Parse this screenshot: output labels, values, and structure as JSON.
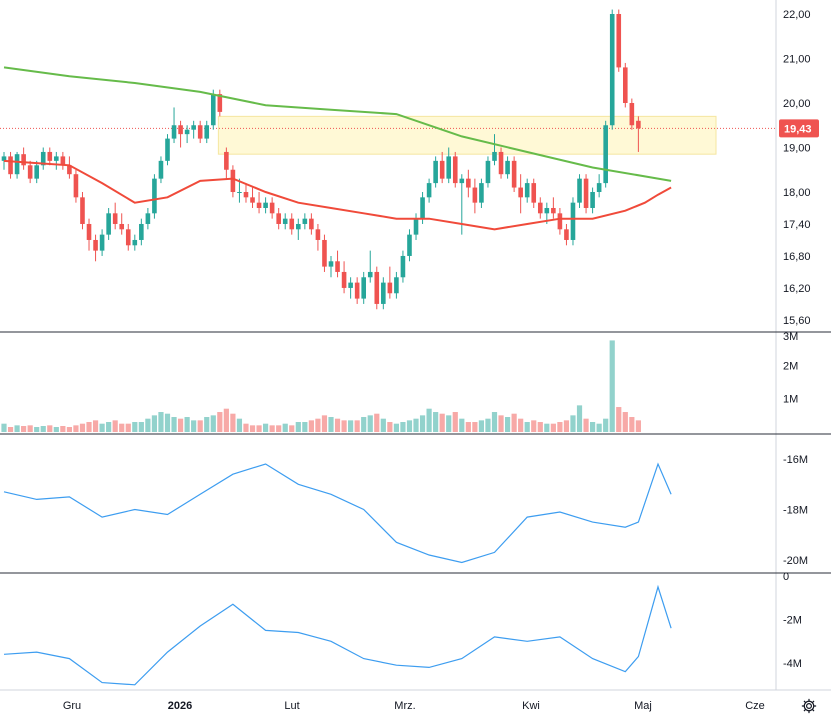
{
  "colors": {
    "up": "#26a69a",
    "down": "#ef5350",
    "up_volume": "#92d2cc",
    "down_volume": "#f7a9a7",
    "ma_long": "#66bb4a",
    "ma_short": "#f04a3a",
    "indicator_line": "#3d9df0",
    "zone_fill": "#fff9d6",
    "zone_stroke": "#f5e6a0",
    "last_price_bg": "#ef5350",
    "last_price_line": "#ef5350"
  },
  "chart_data": [
    {
      "type": "candlestick",
      "pane": "price",
      "x_ticks": [
        "Gru",
        "2026",
        "Lut",
        "Mrz.",
        "Kwi",
        "Maj",
        "Cze"
      ],
      "y_ticks": [
        "22,00",
        "21,00",
        "20,00",
        "19,00",
        "18,00",
        "17,40",
        "16,80",
        "16,20",
        "15,60"
      ],
      "y_tick_values": [
        22.0,
        21.0,
        20.0,
        19.0,
        18.0,
        17.4,
        16.8,
        16.2,
        15.6
      ],
      "last_price_label": "19,43",
      "last_price": 19.43,
      "zone": {
        "low": 18.85,
        "high": 19.7
      },
      "ohlc": [
        [
          18.7,
          18.9,
          18.5,
          18.8
        ],
        [
          18.8,
          18.9,
          18.3,
          18.4
        ],
        [
          18.4,
          18.9,
          18.3,
          18.85
        ],
        [
          18.85,
          19.0,
          18.5,
          18.6
        ],
        [
          18.6,
          18.7,
          18.2,
          18.3
        ],
        [
          18.3,
          18.7,
          18.2,
          18.6
        ],
        [
          18.6,
          19.0,
          18.5,
          18.9
        ],
        [
          18.9,
          19.0,
          18.6,
          18.7
        ],
        [
          18.7,
          18.9,
          18.5,
          18.8
        ],
        [
          18.8,
          18.9,
          18.5,
          18.6
        ],
        [
          18.6,
          18.8,
          18.3,
          18.4
        ],
        [
          18.4,
          18.5,
          17.8,
          17.9
        ],
        [
          17.9,
          18.0,
          17.3,
          17.4
        ],
        [
          17.4,
          17.5,
          16.9,
          17.1
        ],
        [
          17.1,
          17.2,
          16.7,
          16.9
        ],
        [
          16.9,
          17.3,
          16.8,
          17.2
        ],
        [
          17.2,
          17.7,
          17.1,
          17.6
        ],
        [
          17.6,
          17.8,
          17.3,
          17.4
        ],
        [
          17.4,
          17.6,
          17.2,
          17.3
        ],
        [
          17.3,
          17.4,
          16.9,
          17.0
        ],
        [
          17.0,
          17.2,
          16.9,
          17.1
        ],
        [
          17.1,
          17.5,
          17.0,
          17.4
        ],
        [
          17.4,
          17.7,
          17.3,
          17.6
        ],
        [
          17.6,
          18.4,
          17.5,
          18.3
        ],
        [
          18.3,
          18.8,
          18.2,
          18.7
        ],
        [
          18.7,
          19.3,
          18.6,
          19.2
        ],
        [
          19.2,
          19.9,
          19.1,
          19.5
        ],
        [
          19.5,
          19.6,
          19.0,
          19.3
        ],
        [
          19.3,
          19.5,
          19.1,
          19.4
        ],
        [
          19.4,
          19.6,
          19.2,
          19.5
        ],
        [
          19.5,
          19.6,
          19.1,
          19.2
        ],
        [
          19.2,
          19.6,
          19.1,
          19.5
        ],
        [
          19.5,
          20.3,
          19.4,
          20.2
        ],
        [
          20.2,
          20.3,
          19.7,
          19.8
        ],
        [
          18.9,
          19.0,
          18.3,
          18.5
        ],
        [
          18.5,
          18.6,
          17.9,
          18.0
        ],
        [
          18.0,
          18.3,
          17.8,
          18.0
        ],
        [
          18.0,
          18.2,
          17.8,
          17.9
        ],
        [
          17.9,
          18.1,
          17.7,
          17.8
        ],
        [
          17.8,
          18.0,
          17.6,
          17.7
        ],
        [
          17.7,
          17.9,
          17.6,
          17.8
        ],
        [
          17.8,
          17.9,
          17.5,
          17.6
        ],
        [
          17.6,
          17.7,
          17.3,
          17.4
        ],
        [
          17.4,
          17.6,
          17.3,
          17.5
        ],
        [
          17.5,
          17.6,
          17.2,
          17.3
        ],
        [
          17.3,
          17.5,
          17.1,
          17.4
        ],
        [
          17.4,
          17.6,
          17.3,
          17.5
        ],
        [
          17.5,
          17.6,
          17.2,
          17.3
        ],
        [
          17.3,
          17.4,
          16.9,
          17.1
        ],
        [
          17.1,
          17.2,
          16.5,
          16.6
        ],
        [
          16.6,
          16.8,
          16.4,
          16.7
        ],
        [
          16.7,
          16.9,
          16.4,
          16.5
        ],
        [
          16.5,
          16.7,
          16.1,
          16.2
        ],
        [
          16.2,
          16.4,
          16.0,
          16.3
        ],
        [
          16.3,
          16.4,
          15.9,
          16.0
        ],
        [
          16.0,
          16.5,
          15.9,
          16.4
        ],
        [
          16.4,
          16.9,
          16.3,
          16.5
        ],
        [
          16.5,
          16.6,
          15.8,
          15.9
        ],
        [
          15.9,
          16.4,
          15.8,
          16.3
        ],
        [
          16.3,
          16.6,
          16.0,
          16.1
        ],
        [
          16.1,
          16.5,
          16.0,
          16.4
        ],
        [
          16.4,
          16.9,
          16.3,
          16.8
        ],
        [
          16.8,
          17.3,
          16.7,
          17.2
        ],
        [
          17.2,
          17.6,
          17.1,
          17.5
        ],
        [
          17.5,
          18.0,
          17.4,
          17.9
        ],
        [
          17.9,
          18.3,
          17.8,
          18.2
        ],
        [
          18.2,
          18.8,
          18.1,
          18.7
        ],
        [
          18.7,
          18.9,
          18.2,
          18.3
        ],
        [
          18.3,
          19.0,
          18.2,
          18.8
        ],
        [
          18.8,
          18.9,
          18.1,
          18.2
        ],
        [
          18.2,
          18.4,
          17.2,
          18.3
        ],
        [
          18.3,
          18.5,
          17.9,
          18.1
        ],
        [
          18.1,
          18.3,
          17.6,
          17.8
        ],
        [
          17.8,
          18.3,
          17.7,
          18.2
        ],
        [
          18.2,
          18.8,
          18.1,
          18.7
        ],
        [
          18.7,
          19.3,
          18.6,
          18.9
        ],
        [
          18.9,
          19.0,
          18.3,
          18.4
        ],
        [
          18.4,
          18.8,
          18.3,
          18.7
        ],
        [
          18.7,
          18.8,
          18.0,
          18.1
        ],
        [
          18.1,
          18.4,
          17.6,
          17.9
        ],
        [
          17.9,
          18.3,
          17.8,
          18.2
        ],
        [
          18.2,
          18.3,
          17.7,
          17.8
        ],
        [
          17.8,
          17.9,
          17.5,
          17.6
        ],
        [
          17.6,
          17.8,
          17.4,
          17.7
        ],
        [
          17.7,
          17.9,
          17.5,
          17.6
        ],
        [
          17.6,
          17.7,
          17.2,
          17.3
        ],
        [
          17.3,
          17.4,
          17.0,
          17.1
        ],
        [
          17.1,
          17.9,
          17.0,
          17.8
        ],
        [
          17.8,
          18.4,
          17.7,
          18.3
        ],
        [
          18.3,
          18.4,
          17.6,
          17.7
        ],
        [
          17.7,
          18.1,
          17.6,
          18.0
        ],
        [
          18.0,
          18.4,
          17.9,
          18.2
        ],
        [
          18.2,
          19.6,
          18.1,
          19.5
        ],
        [
          19.5,
          22.1,
          19.4,
          22.0
        ],
        [
          22.0,
          22.1,
          20.7,
          20.8
        ],
        [
          20.8,
          20.9,
          19.9,
          20.0
        ],
        [
          20.0,
          20.1,
          19.4,
          19.5
        ],
        [
          19.6,
          19.7,
          18.9,
          19.43
        ]
      ],
      "ma_long": {
        "x": [
          0,
          10,
          20,
          30,
          40,
          50,
          60,
          70,
          80,
          90,
          100,
          102
        ],
        "y": [
          20.8,
          20.6,
          20.45,
          20.25,
          19.95,
          19.85,
          19.75,
          19.25,
          18.9,
          18.55,
          18.3,
          18.25
        ]
      },
      "ma_short": {
        "x": [
          0,
          5,
          10,
          15,
          20,
          25,
          30,
          35,
          40,
          45,
          50,
          55,
          60,
          65,
          70,
          75,
          80,
          85,
          90,
          95,
          98,
          100,
          102
        ],
        "y": [
          18.7,
          18.65,
          18.6,
          18.2,
          17.8,
          17.9,
          18.25,
          18.3,
          18.0,
          17.8,
          17.7,
          17.6,
          17.5,
          17.5,
          17.4,
          17.3,
          17.4,
          17.5,
          17.5,
          17.65,
          17.8,
          17.95,
          18.1
        ]
      }
    },
    {
      "type": "bar",
      "pane": "volume",
      "y_ticks": [
        "3M",
        "2M",
        "1M"
      ],
      "y_tick_values": [
        3000000,
        2000000,
        1000000
      ],
      "values": [
        0.25,
        0.15,
        0.2,
        0.18,
        0.2,
        0.15,
        0.18,
        0.2,
        0.15,
        0.18,
        0.15,
        0.2,
        0.25,
        0.3,
        0.35,
        0.25,
        0.3,
        0.35,
        0.25,
        0.25,
        0.3,
        0.3,
        0.4,
        0.5,
        0.6,
        0.55,
        0.45,
        0.4,
        0.45,
        0.35,
        0.35,
        0.45,
        0.5,
        0.6,
        0.7,
        0.55,
        0.4,
        0.25,
        0.2,
        0.2,
        0.25,
        0.2,
        0.2,
        0.25,
        0.2,
        0.3,
        0.3,
        0.35,
        0.4,
        0.5,
        0.45,
        0.4,
        0.35,
        0.35,
        0.35,
        0.45,
        0.5,
        0.55,
        0.4,
        0.3,
        0.25,
        0.3,
        0.35,
        0.4,
        0.5,
        0.7,
        0.6,
        0.55,
        0.5,
        0.6,
        0.4,
        0.3,
        0.3,
        0.35,
        0.4,
        0.6,
        0.5,
        0.45,
        0.55,
        0.4,
        0.3,
        0.35,
        0.3,
        0.25,
        0.25,
        0.3,
        0.35,
        0.5,
        0.8,
        0.4,
        0.3,
        0.25,
        0.4,
        2.75,
        0.75,
        0.6,
        0.45,
        0.35
      ]
    },
    {
      "type": "line",
      "pane": "indicator1",
      "y_ticks": [
        "-16M",
        "-18M",
        "-20M"
      ],
      "y_tick_values": [
        -16,
        -18,
        -20
      ],
      "x": [
        0,
        5,
        10,
        15,
        20,
        25,
        30,
        35,
        40,
        45,
        50,
        55,
        60,
        65,
        70,
        75,
        80,
        85,
        90,
        95,
        97,
        100,
        102
      ],
      "y": [
        -17.3,
        -17.6,
        -17.5,
        -18.3,
        -18.0,
        -18.2,
        -17.4,
        -16.6,
        -16.2,
        -17.0,
        -17.4,
        -18.0,
        -19.3,
        -19.8,
        -20.1,
        -19.7,
        -18.3,
        -18.1,
        -18.5,
        -18.7,
        -18.5,
        -16.2,
        -17.4
      ]
    },
    {
      "type": "line",
      "pane": "indicator2",
      "y_ticks": [
        "0",
        "-2M",
        "-4M"
      ],
      "y_tick_values": [
        0,
        -2,
        -4
      ],
      "x": [
        0,
        5,
        10,
        15,
        20,
        25,
        30,
        35,
        40,
        45,
        50,
        55,
        60,
        65,
        70,
        75,
        80,
        85,
        90,
        95,
        97,
        100,
        102
      ],
      "y": [
        -3.6,
        -3.5,
        -3.8,
        -4.9,
        -5.0,
        -3.5,
        -2.3,
        -1.3,
        -2.5,
        -2.6,
        -3.0,
        -3.8,
        -4.1,
        -4.2,
        -3.8,
        -2.8,
        -3.0,
        -2.8,
        -3.8,
        -4.4,
        -3.7,
        -0.5,
        -2.4
      ]
    }
  ]
}
